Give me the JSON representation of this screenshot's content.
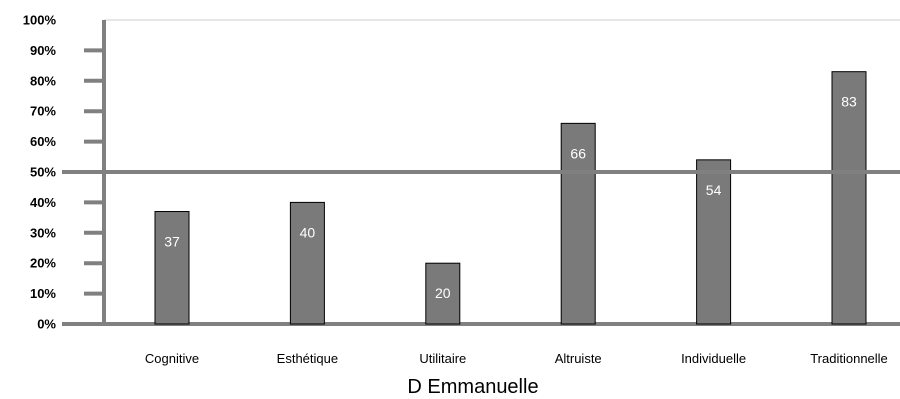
{
  "chart_data": {
    "type": "bar",
    "title": "",
    "xlabel": "D Emmanuelle",
    "ylabel": "",
    "categories": [
      "Cognitive",
      "Esthétique",
      "Utilitaire",
      "Altruiste",
      "Individuelle",
      "Traditionnelle"
    ],
    "values": [
      37,
      40,
      20,
      66,
      54,
      83
    ],
    "data_labels": [
      "37",
      "40",
      "20",
      "66",
      "54",
      "83"
    ],
    "y_tick_labels": [
      "0%",
      "10%",
      "20%",
      "30%",
      "40%",
      "50%",
      "60%",
      "70%",
      "80%",
      "90%",
      "100%"
    ],
    "ylim": [
      0,
      100
    ],
    "reference_line": 50,
    "grid": false,
    "legend": "none",
    "colors": {
      "bar_fill": "#7a7a7a",
      "bar_stroke": "#000000",
      "axis": "#808080",
      "reference_line": "#808080",
      "label_text": "#ffffff"
    }
  }
}
